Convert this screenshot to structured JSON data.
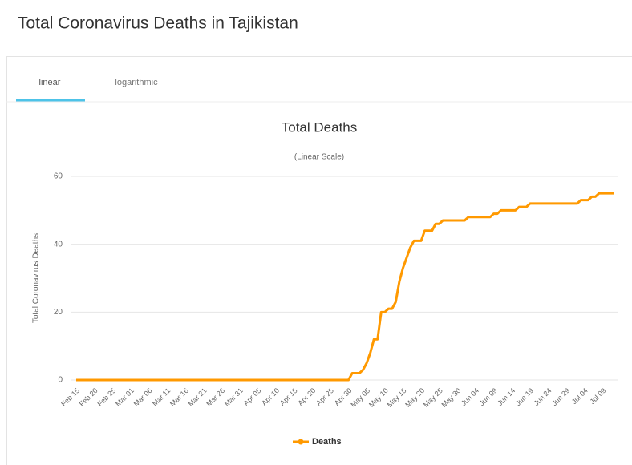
{
  "page": {
    "title": "Total Coronavirus Deaths in Tajikistan",
    "tabs": [
      "linear",
      "logarithmic"
    ]
  },
  "chart_data": {
    "type": "line",
    "title": "Total Deaths",
    "subtitle": "(Linear Scale)",
    "y_label": "Total Coronavirus Deaths",
    "categories": [
      "Feb 15",
      null,
      null,
      null,
      null,
      "Feb 20",
      null,
      null,
      null,
      null,
      "Feb 25",
      null,
      null,
      null,
      null,
      "Mar 01",
      null,
      null,
      null,
      null,
      "Mar 06",
      null,
      null,
      null,
      null,
      "Mar 11",
      null,
      null,
      null,
      null,
      "Mar 16",
      null,
      null,
      null,
      null,
      "Mar 21",
      null,
      null,
      null,
      null,
      "Mar 26",
      null,
      null,
      null,
      null,
      "Mar 31",
      null,
      null,
      null,
      null,
      "Apr 05",
      null,
      null,
      null,
      null,
      "Apr 10",
      null,
      null,
      null,
      null,
      "Apr 15",
      null,
      null,
      null,
      null,
      "Apr 20",
      null,
      null,
      null,
      null,
      "Apr 25",
      null,
      null,
      null,
      null,
      "Apr 30",
      null,
      null,
      null,
      null,
      "May 05",
      null,
      null,
      null,
      null,
      "May 10",
      null,
      null,
      null,
      null,
      "May 15",
      null,
      null,
      null,
      null,
      "May 20",
      null,
      null,
      null,
      null,
      "May 25",
      null,
      null,
      null,
      null,
      "May 30",
      null,
      null,
      null,
      null,
      "Jun 04",
      null,
      null,
      null,
      null,
      "Jun 09",
      null,
      null,
      null,
      null,
      "Jun 14",
      null,
      null,
      null,
      null,
      "Jun 19",
      null,
      null,
      null,
      null,
      "Jun 24",
      null,
      null,
      null,
      null,
      "Jun 29",
      null,
      null,
      null,
      null,
      "Jul 04",
      null,
      null,
      null,
      null,
      "Jul 09",
      null,
      null,
      null
    ],
    "series": [
      {
        "name": "Deaths",
        "color": "#ff9900",
        "values": [
          0,
          0,
          0,
          0,
          0,
          0,
          0,
          0,
          0,
          0,
          0,
          0,
          0,
          0,
          0,
          0,
          0,
          0,
          0,
          0,
          0,
          0,
          0,
          0,
          0,
          0,
          0,
          0,
          0,
          0,
          0,
          0,
          0,
          0,
          0,
          0,
          0,
          0,
          0,
          0,
          0,
          0,
          0,
          0,
          0,
          0,
          0,
          0,
          0,
          0,
          0,
          0,
          0,
          0,
          0,
          0,
          0,
          0,
          0,
          0,
          0,
          0,
          0,
          0,
          0,
          0,
          0,
          0,
          0,
          0,
          0,
          0,
          0,
          0,
          0,
          0,
          2,
          2,
          2,
          3,
          5,
          8,
          12,
          12,
          20,
          20,
          21,
          21,
          23,
          29,
          33,
          36,
          39,
          41,
          41,
          41,
          44,
          44,
          44,
          46,
          46,
          47,
          47,
          47,
          47,
          47,
          47,
          47,
          48,
          48,
          48,
          48,
          48,
          48,
          48,
          49,
          49,
          50,
          50,
          50,
          50,
          50,
          51,
          51,
          51,
          52,
          52,
          52,
          52,
          52,
          52,
          52,
          52,
          52,
          52,
          52,
          52,
          52,
          52,
          53,
          53,
          53,
          54,
          54,
          55,
          55,
          55,
          55,
          55
        ]
      }
    ],
    "ylim": [
      0,
      60
    ],
    "yticks": [
      0,
      20,
      40,
      60
    ],
    "grid": true,
    "legend": "bottom"
  }
}
